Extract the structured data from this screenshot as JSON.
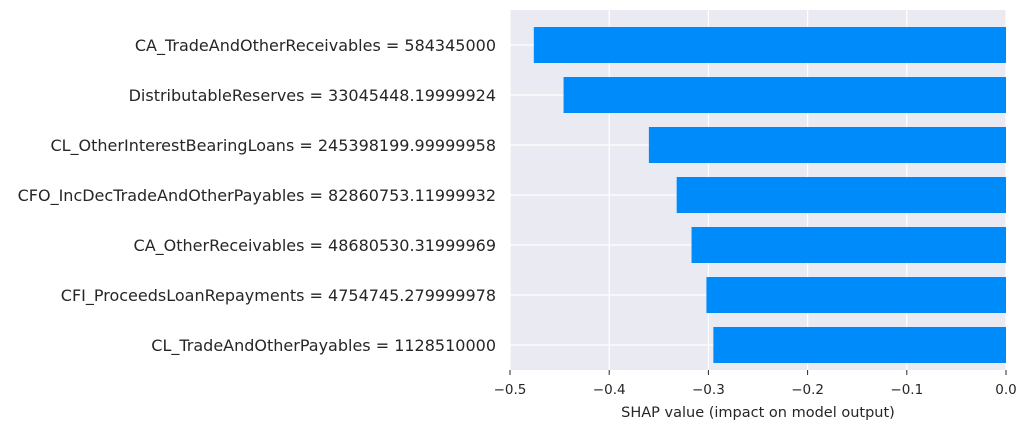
{
  "chart_data": {
    "type": "bar",
    "orientation": "horizontal",
    "title": "",
    "xlabel": "SHAP value (impact on model output)",
    "ylabel": "",
    "xlim": [
      -0.5,
      0.0
    ],
    "xticks": [
      -0.5,
      -0.4,
      -0.3,
      -0.2,
      -0.1,
      0.0
    ],
    "xtick_labels": [
      "−0.5",
      "−0.4",
      "−0.3",
      "−0.2",
      "−0.1",
      "0.0"
    ],
    "grid": true,
    "bar_color": "#008bfb",
    "background_color": "#eaeaf2",
    "categories": [
      "CA_TradeAndOtherReceivables = 584345000",
      "DistributableReserves = 33045448.19999924",
      "CL_OtherInterestBearingLoans = 245398199.99999958",
      "CFO_IncDecTradeAndOtherPayables = 82860753.11999932",
      "CA_OtherReceivables = 48680530.31999969",
      "CFI_ProceedsLoanRepayments = 4754745.279999978",
      "CL_TradeAndOtherPayables = 1128510000"
    ],
    "values": [
      -0.476,
      -0.446,
      -0.36,
      -0.332,
      -0.317,
      -0.302,
      -0.295
    ]
  }
}
